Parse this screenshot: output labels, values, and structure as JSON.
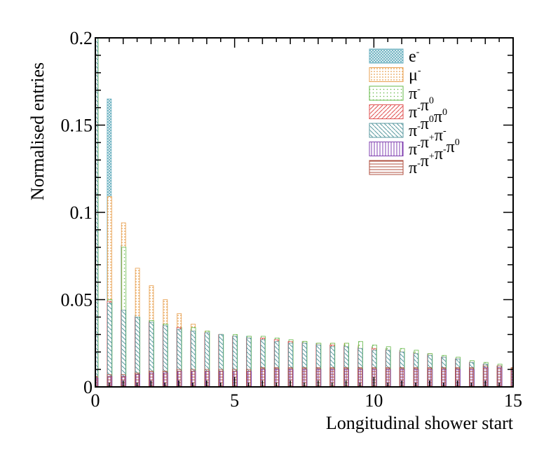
{
  "chart_data": {
    "type": "bar",
    "xlabel": "Longitudinal shower start",
    "ylabel": "Normalised entries",
    "xlim": [
      0,
      15
    ],
    "ylim": [
      0,
      0.2
    ],
    "xticks": [
      "0",
      "5",
      "10",
      "15"
    ],
    "yticks": [
      "0",
      "0.05",
      "0.1",
      "0.15",
      "0.2"
    ],
    "grid": false,
    "legend_position": "top-right",
    "x": [
      0.0,
      0.5,
      1.0,
      1.5,
      2.0,
      2.5,
      3.0,
      3.5,
      4.0,
      4.5,
      5.0,
      5.5,
      6.0,
      6.5,
      7.0,
      7.5,
      8.0,
      8.5,
      9.0,
      9.5,
      10.0,
      10.5,
      11.0,
      11.5,
      12.0,
      12.5,
      13.0,
      13.5,
      14.0,
      14.5,
      15.0
    ],
    "series": [
      {
        "name": "e-",
        "label_base": "e",
        "label_sup": "-",
        "color": "#6ab0c0",
        "pattern": "crosshatch-dense",
        "values": [
          0.2,
          0.165,
          0.081,
          0.041,
          0.038,
          0.036,
          0.034,
          0.033,
          0.031,
          0.03,
          0.029,
          0.029,
          0.028,
          0.027,
          0.026,
          0.026,
          0.025,
          0.024,
          0.024,
          0.023,
          0.023,
          0.022,
          0.021,
          0.02,
          0.019,
          0.017,
          0.016,
          0.014,
          0.013,
          0.012,
          0.01
        ]
      },
      {
        "name": "mu-",
        "label_base": "μ",
        "label_sup": "-",
        "color": "#e8a050",
        "pattern": "dots",
        "values": [
          0.2,
          0.109,
          0.094,
          0.068,
          0.058,
          0.05,
          0.042,
          0.036,
          0.032,
          0.03,
          0.029,
          0.028,
          0.028,
          0.027,
          0.026,
          0.026,
          0.025,
          0.025,
          0.025,
          0.024,
          0.023,
          0.022,
          0.021,
          0.02,
          0.019,
          0.017,
          0.016,
          0.014,
          0.013,
          0.012,
          0.011
        ]
      },
      {
        "name": "pi-",
        "label_base": "π",
        "label_sup": "-",
        "color": "#66b94a",
        "pattern": "sparse-dots",
        "values": [
          0.2,
          0.05,
          0.08,
          0.04,
          0.038,
          0.036,
          0.034,
          0.034,
          0.032,
          0.03,
          0.03,
          0.029,
          0.029,
          0.028,
          0.027,
          0.026,
          0.025,
          0.025,
          0.025,
          0.026,
          0.024,
          0.023,
          0.022,
          0.021,
          0.019,
          0.018,
          0.017,
          0.015,
          0.014,
          0.013,
          0.011
        ]
      },
      {
        "name": "pi-pi0",
        "label_base": "π",
        "label_sup": "-",
        "label_extra": "π",
        "label_extra_sup": "0",
        "color": "#e05050",
        "pattern": "diag-right",
        "values": [
          0.2,
          0.049,
          0.044,
          0.04,
          0.037,
          0.035,
          0.034,
          0.032,
          0.031,
          0.03,
          0.029,
          0.028,
          0.028,
          0.027,
          0.026,
          0.025,
          0.024,
          0.024,
          0.023,
          0.022,
          0.022,
          0.021,
          0.02,
          0.019,
          0.018,
          0.017,
          0.016,
          0.014,
          0.013,
          0.012,
          0.01
        ]
      },
      {
        "name": "pi-pi0pi0",
        "label_base": "π",
        "label_sup": "-",
        "label_extra": "π",
        "label_extra_sup": "0",
        "label_extra2": "π",
        "label_extra2_sup": "0",
        "color": "#5a9aa0",
        "pattern": "diag-left",
        "values": [
          0.2,
          0.048,
          0.044,
          0.04,
          0.037,
          0.035,
          0.033,
          0.032,
          0.031,
          0.03,
          0.029,
          0.028,
          0.027,
          0.026,
          0.025,
          0.025,
          0.024,
          0.023,
          0.023,
          0.022,
          0.021,
          0.021,
          0.02,
          0.019,
          0.018,
          0.017,
          0.016,
          0.014,
          0.013,
          0.012,
          0.01
        ]
      },
      {
        "name": "pi-pi+pi-",
        "label_base": "π",
        "label_sup": "-",
        "label_extra": "π",
        "label_extra_sup": "+",
        "label_extra2": "π",
        "label_extra2_sup": "-",
        "color": "#8040b0",
        "pattern": "vertical",
        "values": [
          0.005,
          0.006,
          0.006,
          0.007,
          0.008,
          0.008,
          0.009,
          0.009,
          0.009,
          0.009,
          0.009,
          0.009,
          0.01,
          0.01,
          0.01,
          0.01,
          0.01,
          0.01,
          0.01,
          0.01,
          0.01,
          0.01,
          0.01,
          0.01,
          0.01,
          0.01,
          0.01,
          0.01,
          0.011,
          0.011,
          0.01
        ]
      },
      {
        "name": "pi-pi+pi-pi0",
        "label_base": "π",
        "label_sup": "-",
        "label_extra": "π",
        "label_extra_sup": "+",
        "label_extra2": "π",
        "label_extra2_sup": "-",
        "label_extra3": "π",
        "label_extra3_sup": "0",
        "color": "#b05040",
        "pattern": "horizontal",
        "values": [
          0.006,
          0.007,
          0.007,
          0.008,
          0.009,
          0.009,
          0.01,
          0.01,
          0.01,
          0.01,
          0.01,
          0.01,
          0.011,
          0.011,
          0.011,
          0.011,
          0.011,
          0.011,
          0.011,
          0.011,
          0.011,
          0.011,
          0.011,
          0.011,
          0.011,
          0.011,
          0.011,
          0.011,
          0.012,
          0.012,
          0.011
        ]
      }
    ]
  }
}
